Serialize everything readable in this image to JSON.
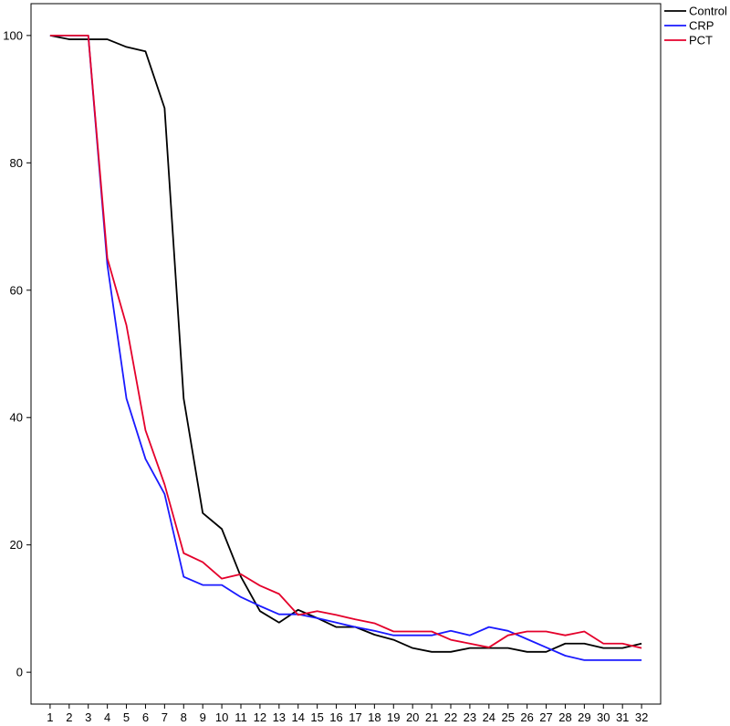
{
  "chart_data": {
    "type": "line",
    "title": "",
    "xlabel": "",
    "ylabel": "",
    "x": [
      1,
      2,
      3,
      4,
      5,
      6,
      7,
      8,
      9,
      10,
      11,
      12,
      13,
      14,
      15,
      16,
      17,
      18,
      19,
      20,
      21,
      22,
      23,
      24,
      25,
      26,
      27,
      28,
      29,
      30,
      31,
      32
    ],
    "xlim": [
      0,
      33
    ],
    "ylim": [
      -5,
      105
    ],
    "yticks": [
      0,
      20,
      40,
      60,
      80,
      100
    ],
    "grid": false,
    "legend_position": "top-right",
    "series": [
      {
        "name": "Control",
        "color": "#000000",
        "values": [
          100,
          99.4,
          99.4,
          99.4,
          98.2,
          97.5,
          88.6,
          43.0,
          25.0,
          22.5,
          15.0,
          9.6,
          7.8,
          9.8,
          8.5,
          7.1,
          7.1,
          5.9,
          5.1,
          3.8,
          3.2,
          3.2,
          3.8,
          3.8,
          3.8,
          3.2,
          3.2,
          4.5,
          4.5,
          3.8,
          3.8,
          4.5
        ]
      },
      {
        "name": "CRP",
        "color": "#1a1aff",
        "values": [
          100,
          100,
          100,
          64.0,
          43.0,
          33.5,
          28.0,
          15.0,
          13.7,
          13.7,
          11.8,
          10.4,
          9.1,
          9.1,
          8.5,
          7.8,
          7.1,
          6.5,
          5.8,
          5.8,
          5.8,
          6.5,
          5.8,
          7.1,
          6.5,
          5.2,
          3.9,
          2.6,
          1.9,
          1.9,
          1.9,
          1.9
        ]
      },
      {
        "name": "PCT",
        "color": "#e4002b",
        "values": [
          100,
          100,
          100,
          65.0,
          54.5,
          38.0,
          29.5,
          18.7,
          17.3,
          14.7,
          15.4,
          13.6,
          12.3,
          9.0,
          9.6,
          9.0,
          8.3,
          7.7,
          6.4,
          6.4,
          6.4,
          5.1,
          4.5,
          3.9,
          5.8,
          6.4,
          6.4,
          5.8,
          6.4,
          4.5,
          4.5,
          3.8
        ]
      }
    ]
  }
}
